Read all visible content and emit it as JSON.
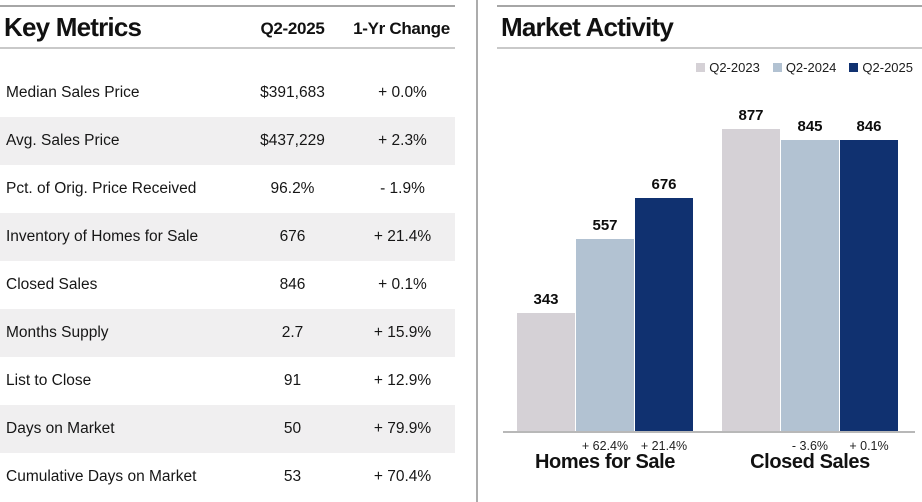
{
  "left_panel": {
    "title": "Key Metrics",
    "columns": {
      "value": "Q2-2025",
      "change": "1-Yr Change"
    },
    "rows": [
      {
        "label": "Median Sales Price",
        "value": "$391,683",
        "change": "+ 0.0%"
      },
      {
        "label": "Avg. Sales Price",
        "value": "$437,229",
        "change": "+ 2.3%"
      },
      {
        "label": "Pct. of Orig. Price Received",
        "value": "96.2%",
        "change": "- 1.9%"
      },
      {
        "label": "Inventory of Homes for Sale",
        "value": "676",
        "change": "+ 21.4%"
      },
      {
        "label": "Closed Sales",
        "value": "846",
        "change": "+ 0.1%"
      },
      {
        "label": "Months Supply",
        "value": "2.7",
        "change": "+ 15.9%"
      },
      {
        "label": "List to Close",
        "value": "91",
        "change": "+ 12.9%"
      },
      {
        "label": "Days on Market",
        "value": "50",
        "change": "+ 79.9%"
      },
      {
        "label": "Cumulative Days on Market",
        "value": "53",
        "change": "+ 70.4%"
      }
    ]
  },
  "right_panel": {
    "title": "Market Activity"
  },
  "chart_data": {
    "type": "bar",
    "title": "Market Activity",
    "series": [
      "Q2-2023",
      "Q2-2024",
      "Q2-2025"
    ],
    "colors": [
      "#D5D1D6",
      "#B2C2D2",
      "#103170"
    ],
    "groups": [
      {
        "category": "Homes for Sale",
        "values": [
          343,
          557,
          676
        ],
        "change_labels": [
          "",
          "+ 62.4%",
          "+ 21.4%"
        ]
      },
      {
        "category": "Closed Sales",
        "values": [
          877,
          845,
          846
        ],
        "change_labels": [
          "",
          "- 3.6%",
          "+ 0.1%"
        ]
      }
    ],
    "ylim": [
      0,
      900
    ],
    "grid": false,
    "legend_position": "top-right",
    "value_labels": true
  },
  "colors": {
    "row_stripe": "#F0EFF0",
    "divider": "#ACACAC",
    "top_rule": "#A6A6A6",
    "header_rule": "#C9C9C9",
    "axis": "#B8B8B8",
    "accent_navy": "#103170"
  }
}
